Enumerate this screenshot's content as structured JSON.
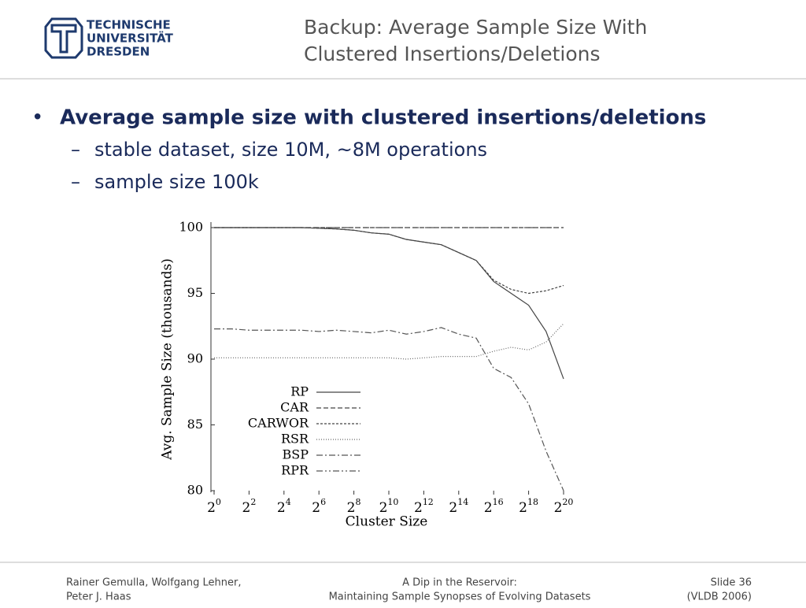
{
  "header": {
    "logo": [
      "TECHNISCHE",
      "UNIVERSITÄT",
      "DRESDEN"
    ],
    "title": [
      "Backup: Average Sample Size With",
      "Clustered Insertions/Deletions"
    ]
  },
  "bullets": {
    "main": "Average sample size with clustered insertions/deletions",
    "sub": [
      "stable dataset, size 10M, ~8M operations",
      "sample size 100k"
    ]
  },
  "chart_data": {
    "type": "line",
    "xlabel": "Cluster Size",
    "ylabel": "Avg. Sample Size (thousands)",
    "x": [
      1,
      2,
      4,
      8,
      16,
      32,
      64,
      128,
      256,
      512,
      1024,
      2048,
      4096,
      8192,
      16384,
      32768,
      65536,
      131072,
      262144,
      524288,
      1048576
    ],
    "xscale": "log",
    "xlim": [
      1,
      1048576
    ],
    "xticks": [
      {
        "value": 1,
        "label": "2^0"
      },
      {
        "value": 4,
        "label": "2^2"
      },
      {
        "value": 16,
        "label": "2^4"
      },
      {
        "value": 64,
        "label": "2^6"
      },
      {
        "value": 256,
        "label": "2^8"
      },
      {
        "value": 1024,
        "label": "2^10"
      },
      {
        "value": 4096,
        "label": "2^12"
      },
      {
        "value": 16384,
        "label": "2^14"
      },
      {
        "value": 65536,
        "label": "2^16"
      },
      {
        "value": 262144,
        "label": "2^18"
      },
      {
        "value": 1048576,
        "label": "2^20"
      }
    ],
    "ylim": [
      80,
      100
    ],
    "yticks": [
      80,
      85,
      90,
      95,
      100
    ],
    "series": [
      {
        "name": "RP",
        "color": "#444444",
        "style": "solid",
        "values": [
          100,
          100,
          100,
          100,
          100,
          100,
          99.95,
          99.9,
          99.8,
          99.6,
          99.5,
          99.1,
          98.9,
          98.7,
          98.1,
          97.5,
          95.9,
          95.0,
          94.1,
          92.1,
          88.5
        ]
      },
      {
        "name": "CAR",
        "color": "#444444",
        "style": "dashed",
        "values": [
          100,
          100,
          100,
          100,
          100,
          100,
          100,
          100,
          100,
          100,
          100,
          100,
          100,
          100,
          100,
          100,
          100,
          100,
          100,
          100,
          100
        ]
      },
      {
        "name": "CARWOR",
        "color": "#444444",
        "style": "dashed-fine",
        "values": [
          100,
          100,
          100,
          100,
          100,
          100,
          99.95,
          99.9,
          99.8,
          99.6,
          99.5,
          99.1,
          98.9,
          98.7,
          98.1,
          97.5,
          96.0,
          95.3,
          95.0,
          95.2,
          95.6
        ]
      },
      {
        "name": "RSR",
        "color": "#666666",
        "style": "dotted",
        "values": [
          90.1,
          90.1,
          90.1,
          90.1,
          90.1,
          90.1,
          90.1,
          90.1,
          90.1,
          90.1,
          90.1,
          90.0,
          90.1,
          90.2,
          90.2,
          90.2,
          90.6,
          90.9,
          90.7,
          91.3,
          92.7
        ]
      },
      {
        "name": "BSP",
        "color": "#555555",
        "style": "dashdot",
        "values": [
          92.3,
          92.3,
          92.2,
          92.2,
          92.2,
          92.2,
          92.1,
          92.2,
          92.1,
          92.0,
          92.2,
          91.9,
          92.1,
          92.4,
          91.9,
          91.6,
          89.3,
          88.6,
          86.6,
          83.0,
          80.0
        ]
      },
      {
        "name": "RPR",
        "color": "#555555",
        "style": "dashdotdot",
        "values": [
          100,
          100,
          100,
          100,
          100,
          100,
          100,
          100,
          100,
          100,
          100,
          100,
          100,
          100,
          100,
          100,
          100,
          100,
          100,
          100,
          100
        ]
      }
    ]
  },
  "footer": {
    "authors": [
      "Rainer Gemulla, Wolfgang Lehner,",
      "Peter J. Haas"
    ],
    "talk": [
      "A Dip in the Reservoir:",
      "Maintaining Sample Synopses of Evolving Datasets"
    ],
    "slide": [
      "Slide 36",
      "(VLDB 2006)"
    ]
  }
}
